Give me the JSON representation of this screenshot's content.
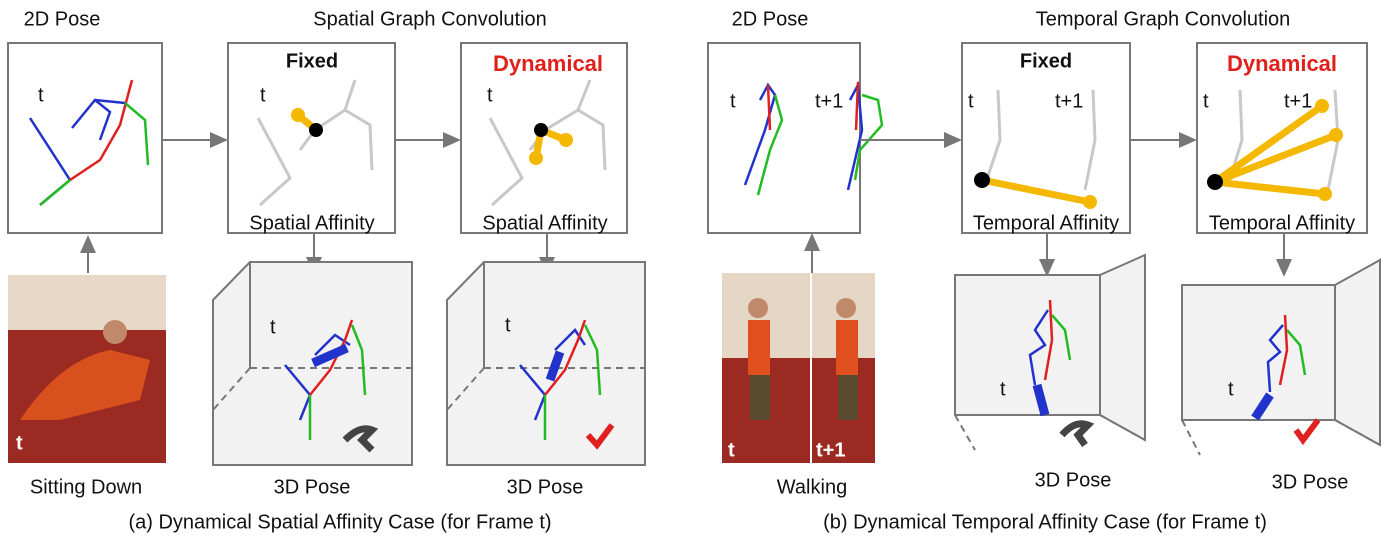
{
  "panel_a": {
    "heading_2d": "2D Pose",
    "heading_conv": "Spatial Graph Convolution",
    "pose_2d": {
      "frame": "t"
    },
    "fixed": {
      "title": "Fixed",
      "frame": "t",
      "label": "Spatial Affinity"
    },
    "dynamical": {
      "title": "Dynamical",
      "frame": "t",
      "label": "Spatial Affinity"
    },
    "photo": {
      "frame": "t",
      "action": "Sitting Down"
    },
    "pose_3d_fixed": {
      "frame": "t",
      "label": "3D Pose"
    },
    "pose_3d_dynamical": {
      "frame": "t",
      "label": "3D Pose"
    },
    "caption": "(a) Dynamical Spatial Affinity Case (for Frame t)"
  },
  "panel_b": {
    "heading_2d": "2D Pose",
    "heading_conv": "Temporal Graph Convolution",
    "pose_2d": {
      "frame_1": "t",
      "frame_2": "t+1"
    },
    "fixed": {
      "title": "Fixed",
      "frame_1": "t",
      "frame_2": "t+1",
      "label": "Temporal Affinity"
    },
    "dynamical": {
      "title": "Dynamical",
      "frame_1": "t",
      "frame_2": "t+1",
      "label": "Temporal Affinity"
    },
    "photo": {
      "frame_1": "t",
      "frame_2": "t+1",
      "action": "Walking"
    },
    "pose_3d_fixed": {
      "frame": "t",
      "label": "3D Pose"
    },
    "pose_3d_dynamical": {
      "frame": "t",
      "label": "3D Pose"
    },
    "caption": "(b) Dynamical Temporal Affinity Case (for Frame t)"
  }
}
